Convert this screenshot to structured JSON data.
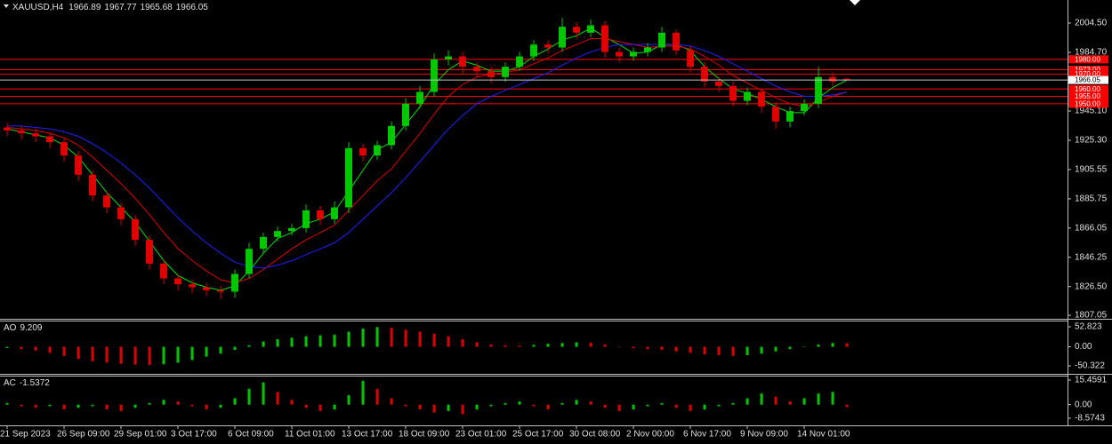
{
  "chart_data": [
    {
      "type": "candlestick",
      "title": "XAUUSD,H4",
      "categories": [
        "21 Sep 2023",
        null,
        null,
        null,
        "26 Sep 09:00",
        null,
        null,
        null,
        "29 Sep 01:00",
        null,
        null,
        null,
        "3 Oct 17:00",
        null,
        null,
        null,
        "6 Oct 09:00",
        null,
        null,
        null,
        "11 Oct 01:00",
        null,
        null,
        null,
        "13 Oct 17:00",
        null,
        null,
        null,
        "18 Oct 09:00",
        null,
        null,
        null,
        "23 Oct 01:00",
        null,
        null,
        null,
        "25 Oct 17:00",
        null,
        null,
        null,
        "30 Oct 08:00",
        null,
        null,
        null,
        "2 Nov 00:00",
        null,
        null,
        null,
        "6 Nov 17:00",
        null,
        null,
        null,
        "9 Nov 09:00",
        null,
        null,
        null,
        "14 Nov 01:00",
        null,
        null,
        null
      ],
      "open": [
        1934,
        1932,
        1930,
        1928,
        1924,
        1915,
        1902,
        1888,
        1880,
        1872,
        1858,
        1842,
        1832,
        1828,
        1826,
        1824,
        1823,
        1835,
        1852,
        1860,
        1864,
        1866,
        1878,
        1872,
        1880,
        1920,
        1915,
        1922,
        1935,
        1950,
        1958,
        1980,
        1982,
        1975,
        1972,
        1968,
        1975,
        1982,
        1990,
        1988,
        2002,
        1998,
        2003,
        1985,
        1982,
        1985,
        1988,
        1998,
        1986,
        1975,
        1965,
        1962,
        1952,
        1958,
        1948,
        1938,
        1945,
        1950,
        1968,
        1966.89
      ],
      "high": [
        1937,
        1935,
        1933,
        1931,
        1927,
        1918,
        1905,
        1891,
        1883,
        1875,
        1861,
        1845,
        1835,
        1831,
        1829,
        1827,
        1838,
        1856,
        1863,
        1867,
        1869,
        1882,
        1881,
        1884,
        1924,
        1923,
        1925,
        1938,
        1954,
        1962,
        1984,
        1986,
        1985,
        1978,
        1975,
        1978,
        1985,
        1993,
        1993,
        2008,
        2005,
        2007,
        2006,
        1988,
        1988,
        1991,
        2002,
        2000,
        1989,
        1978,
        1968,
        1965,
        1961,
        1960,
        1951,
        1948,
        1953,
        1975,
        1971,
        1967.77
      ],
      "low": [
        1928,
        1926,
        1924,
        1920,
        1911,
        1898,
        1884,
        1876,
        1868,
        1854,
        1838,
        1828,
        1824,
        1822,
        1820,
        1818,
        1819,
        1832,
        1849,
        1857,
        1861,
        1863,
        1868,
        1869,
        1876,
        1911,
        1912,
        1919,
        1932,
        1947,
        1955,
        1976,
        1970,
        1968,
        1964,
        1965,
        1972,
        1979,
        1984,
        1985,
        1994,
        1995,
        1981,
        1978,
        1979,
        1982,
        1985,
        1983,
        1971,
        1961,
        1958,
        1948,
        1949,
        1944,
        1933,
        1934,
        1942,
        1947,
        1962,
        1965.68
      ],
      "close": [
        1932,
        1930,
        1928,
        1924,
        1915,
        1902,
        1888,
        1880,
        1872,
        1858,
        1842,
        1832,
        1828,
        1826,
        1824,
        1823,
        1835,
        1852,
        1860,
        1864,
        1866,
        1878,
        1872,
        1880,
        1920,
        1915,
        1922,
        1935,
        1950,
        1958,
        1980,
        1982,
        1975,
        1972,
        1968,
        1975,
        1982,
        1990,
        1988,
        2002,
        1998,
        2003,
        1985,
        1982,
        1985,
        1988,
        1998,
        1986,
        1975,
        1965,
        1962,
        1952,
        1958,
        1948,
        1938,
        1945,
        1950,
        1968,
        1965,
        1966.05
      ],
      "up_color": "#00c800",
      "down_color": "#e00000",
      "series": [
        {
          "color": "#00e000",
          "values": [
            1933,
            1931,
            1929,
            1927,
            1922,
            1914,
            1902,
            1890,
            1880,
            1870,
            1857,
            1844,
            1834,
            1829,
            1826,
            1824,
            1827,
            1837,
            1849,
            1859,
            1863,
            1869,
            1872,
            1877,
            1891,
            1905,
            1919,
            1924,
            1936,
            1948,
            1963,
            1973,
            1979,
            1976,
            1972,
            1972,
            1975,
            1982,
            1987,
            1993,
            1996,
            2001,
            1995,
            1990,
            1984,
            1985,
            1990,
            1990,
            1986,
            1975,
            1967,
            1960,
            1957,
            1953,
            1948,
            1944,
            1944,
            1954,
            1961,
            1966
          ]
        },
        {
          "color": "#e00000",
          "values": [
            1934,
            1933,
            1932,
            1930,
            1927,
            1922,
            1914,
            1905,
            1896,
            1886,
            1875,
            1863,
            1852,
            1844,
            1837,
            1831,
            1829,
            1832,
            1838,
            1845,
            1852,
            1858,
            1863,
            1868,
            1878,
            1888,
            1898,
            1906,
            1918,
            1930,
            1943,
            1955,
            1963,
            1968,
            1970,
            1971,
            1973,
            1977,
            1981,
            1986,
            1990,
            1994,
            1994,
            1992,
            1990,
            1988,
            1989,
            1989,
            1987,
            1982,
            1976,
            1969,
            1964,
            1959,
            1954,
            1950,
            1948,
            1951,
            1955,
            1958
          ]
        },
        {
          "color": "#2020ff",
          "values": [
            1935,
            1935,
            1934,
            1933,
            1931,
            1928,
            1923,
            1917,
            1910,
            1902,
            1893,
            1883,
            1873,
            1864,
            1856,
            1849,
            1843,
            1840,
            1839,
            1841,
            1844,
            1848,
            1852,
            1856,
            1863,
            1872,
            1881,
            1890,
            1900,
            1911,
            1922,
            1933,
            1942,
            1950,
            1955,
            1959,
            1963,
            1967,
            1971,
            1976,
            1981,
            1985,
            1988,
            1990,
            1990,
            1990,
            1990,
            1990,
            1989,
            1986,
            1982,
            1977,
            1972,
            1967,
            1962,
            1958,
            1955,
            1955,
            1956,
            1958
          ]
        }
      ],
      "levels": [
        {
          "value": 1980,
          "label": "1980.00"
        },
        {
          "value": 1973,
          "label": "1973.00"
        },
        {
          "value": 1970,
          "label": "1970.00"
        },
        {
          "value": 1960,
          "label": "1960.00"
        },
        {
          "value": 1955,
          "label": "1955.00"
        },
        {
          "value": 1950,
          "label": "1950.00"
        }
      ],
      "level_color": "#ff0000",
      "ylim": [
        1805.3,
        2020.1
      ],
      "yticks": [
        {
          "value": 2004.5,
          "label": "2004.50"
        },
        {
          "value": 1984.7,
          "label": "1984.70"
        },
        {
          "value": 1945.1,
          "label": "1945.10"
        },
        {
          "value": 1925.3,
          "label": "1925.30"
        },
        {
          "value": 1905.55,
          "label": "1905.55"
        },
        {
          "value": 1885.75,
          "label": "1885.75"
        },
        {
          "value": 1866.05,
          "label": "1866.05"
        },
        {
          "value": 1846.25,
          "label": "1846.25"
        },
        {
          "value": 1826.5,
          "label": "1826.50"
        },
        {
          "value": 1807.05,
          "label": "1807.05"
        }
      ],
      "grid": false
    },
    {
      "type": "bar",
      "title": "AO",
      "values": [
        -3,
        -6,
        -10,
        -16,
        -24,
        -32,
        -38,
        -42,
        -45,
        -47,
        -48,
        -46,
        -42,
        -35,
        -26,
        -18,
        -8,
        4,
        14,
        20,
        24,
        28,
        30,
        32,
        40,
        48,
        52,
        50,
        45,
        40,
        35,
        28,
        20,
        12,
        6,
        4,
        3,
        5,
        8,
        10,
        12,
        11,
        6,
        0,
        -4,
        -6,
        -8,
        -12,
        -16,
        -20,
        -22,
        -24,
        -22,
        -18,
        -12,
        -6,
        0,
        6,
        10,
        9.209
      ],
      "up_color": "#00c800",
      "down_color": "#e00000",
      "ylim": [
        -69.1,
        66.9
      ],
      "yticks": [
        52.823,
        {
          "value": 0,
          "label": "0.00"
        },
        -50.322
      ]
    },
    {
      "type": "bar",
      "title": "AC",
      "values": [
        1,
        -1,
        -2,
        -1,
        -3,
        -2,
        -1,
        -3,
        -4,
        -2,
        1,
        3,
        2,
        -1,
        -3,
        -2,
        4,
        10,
        14,
        8,
        3,
        -2,
        -4,
        -3,
        6,
        15,
        10,
        4,
        -1,
        -3,
        -5,
        -4,
        -6,
        -3,
        -1,
        1,
        2,
        -1,
        -3,
        1,
        3,
        2,
        -2,
        -4,
        -3,
        -1,
        1,
        -2,
        -4,
        -3,
        -1,
        1,
        4,
        7,
        5,
        2,
        4,
        7,
        8,
        -1.5372
      ],
      "up_color": "#00c800",
      "down_color": "#e00000",
      "ylim": [
        -12.5,
        17.7
      ],
      "yticks": [
        15.4591,
        {
          "value": 0,
          "label": "0.00"
        },
        -8.5743
      ]
    }
  ]
}
